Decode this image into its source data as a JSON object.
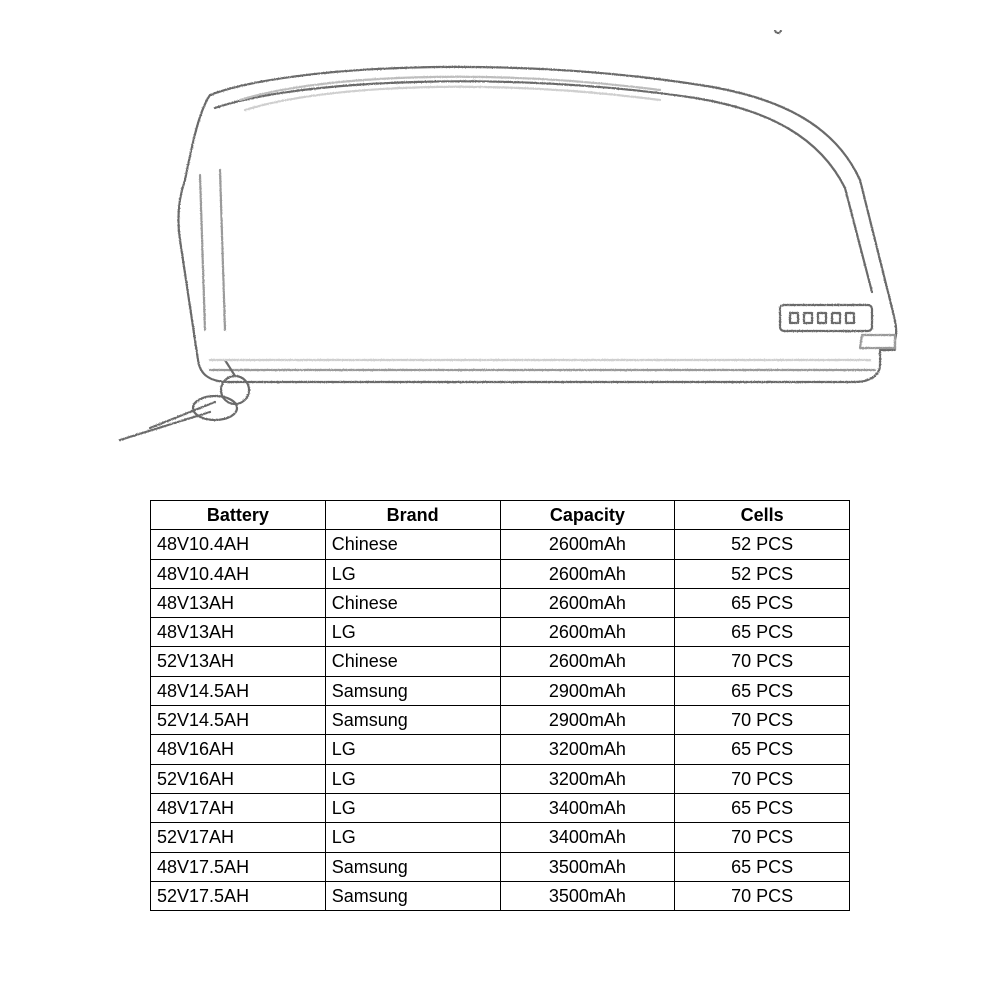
{
  "sketch": {
    "stroke": "#6b6b6b",
    "stroke_light": "#9a9a9a",
    "stroke_width": 2.2,
    "elements": {
      "body_outline": true,
      "top_seam": true,
      "keys": true,
      "indicator_box": true,
      "indicator_dots": 5,
      "indicator_label": "□ □ □ □ □"
    }
  },
  "table": {
    "columns": [
      "Battery",
      "Brand",
      "Capacity",
      "Cells"
    ],
    "col_widths_pct": [
      25,
      25,
      25,
      25
    ],
    "header_weight": "bold",
    "header_fontsize": 18,
    "cell_fontsize": 18,
    "border_color": "#000000",
    "background_color": "#ffffff",
    "rows": [
      [
        "48V10.4AH",
        "Chinese",
        "2600mAh",
        "52 PCS"
      ],
      [
        "48V10.4AH",
        "LG",
        "2600mAh",
        "52 PCS"
      ],
      [
        "48V13AH",
        "Chinese",
        "2600mAh",
        "65 PCS"
      ],
      [
        "48V13AH",
        "LG",
        "2600mAh",
        "65 PCS"
      ],
      [
        "52V13AH",
        "Chinese",
        "2600mAh",
        "70 PCS"
      ],
      [
        "48V14.5AH",
        "Samsung",
        "2900mAh",
        "65 PCS"
      ],
      [
        "52V14.5AH",
        "Samsung",
        "2900mAh",
        "70 PCS"
      ],
      [
        "48V16AH",
        "LG",
        "3200mAh",
        "65 PCS"
      ],
      [
        "52V16AH",
        "LG",
        "3200mAh",
        "70 PCS"
      ],
      [
        "48V17AH",
        "LG",
        "3400mAh",
        "65 PCS"
      ],
      [
        "52V17AH",
        "LG",
        "3400mAh",
        "70 PCS"
      ],
      [
        "48V17.5AH",
        "Samsung",
        "3500mAh",
        "65 PCS"
      ],
      [
        "52V17.5AH",
        "Samsung",
        "3500mAh",
        "70 PCS"
      ]
    ],
    "col_align": [
      "left",
      "left",
      "center",
      "center"
    ]
  }
}
